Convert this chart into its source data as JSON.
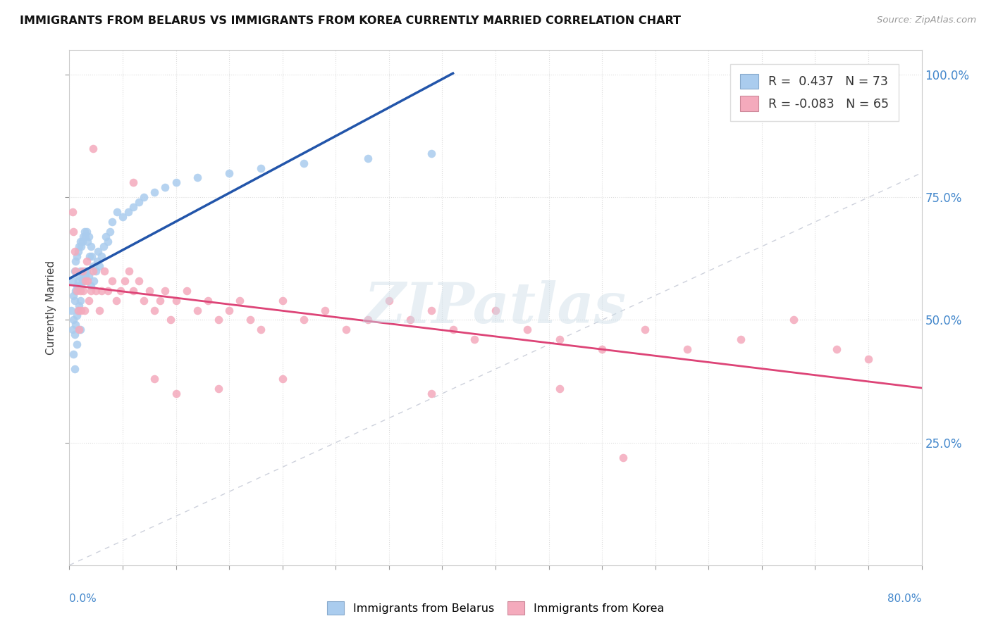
{
  "title": "IMMIGRANTS FROM BELARUS VS IMMIGRANTS FROM KOREA CURRENTLY MARRIED CORRELATION CHART",
  "source": "Source: ZipAtlas.com",
  "ylabel": "Currently Married",
  "xmin": 0.0,
  "xmax": 0.8,
  "ymin": 0.0,
  "ymax": 1.05,
  "yticks": [
    0.25,
    0.5,
    0.75,
    1.0
  ],
  "ytick_labels": [
    "25.0%",
    "50.0%",
    "75.0%",
    "100.0%"
  ],
  "legend_r_belarus": "0.437",
  "legend_n_belarus": "73",
  "legend_r_korea": "-0.083",
  "legend_n_korea": "65",
  "color_belarus": "#aaccee",
  "color_korea": "#f4aabc",
  "color_trendline_belarus": "#2255aa",
  "color_trendline_korea": "#dd4477",
  "color_diagonal": "#c8ccd8",
  "watermark": "ZIPatlas",
  "belarus_x": [
    0.002,
    0.003,
    0.003,
    0.004,
    0.004,
    0.004,
    0.005,
    0.005,
    0.005,
    0.005,
    0.006,
    0.006,
    0.006,
    0.007,
    0.007,
    0.007,
    0.007,
    0.008,
    0.008,
    0.008,
    0.009,
    0.009,
    0.009,
    0.01,
    0.01,
    0.01,
    0.01,
    0.011,
    0.011,
    0.012,
    0.012,
    0.013,
    0.013,
    0.014,
    0.014,
    0.015,
    0.015,
    0.016,
    0.016,
    0.017,
    0.018,
    0.018,
    0.019,
    0.02,
    0.02,
    0.021,
    0.022,
    0.023,
    0.025,
    0.026,
    0.027,
    0.028,
    0.03,
    0.032,
    0.034,
    0.036,
    0.038,
    0.04,
    0.045,
    0.05,
    0.055,
    0.06,
    0.065,
    0.07,
    0.08,
    0.09,
    0.1,
    0.12,
    0.15,
    0.18,
    0.22,
    0.28,
    0.34
  ],
  "belarus_y": [
    0.52,
    0.58,
    0.48,
    0.55,
    0.5,
    0.43,
    0.6,
    0.54,
    0.47,
    0.4,
    0.62,
    0.56,
    0.49,
    0.63,
    0.57,
    0.51,
    0.45,
    0.64,
    0.58,
    0.52,
    0.65,
    0.59,
    0.53,
    0.66,
    0.6,
    0.54,
    0.48,
    0.65,
    0.57,
    0.66,
    0.58,
    0.67,
    0.59,
    0.68,
    0.6,
    0.67,
    0.59,
    0.68,
    0.6,
    0.66,
    0.67,
    0.59,
    0.63,
    0.65,
    0.57,
    0.63,
    0.61,
    0.58,
    0.6,
    0.62,
    0.64,
    0.61,
    0.63,
    0.65,
    0.67,
    0.66,
    0.68,
    0.7,
    0.72,
    0.71,
    0.72,
    0.73,
    0.74,
    0.75,
    0.76,
    0.77,
    0.78,
    0.79,
    0.8,
    0.81,
    0.82,
    0.83,
    0.84
  ],
  "korea_x": [
    0.003,
    0.004,
    0.005,
    0.006,
    0.007,
    0.008,
    0.009,
    0.01,
    0.011,
    0.012,
    0.013,
    0.014,
    0.015,
    0.016,
    0.017,
    0.018,
    0.02,
    0.022,
    0.025,
    0.028,
    0.03,
    0.033,
    0.036,
    0.04,
    0.044,
    0.048,
    0.052,
    0.056,
    0.06,
    0.065,
    0.07,
    0.075,
    0.08,
    0.085,
    0.09,
    0.095,
    0.1,
    0.11,
    0.12,
    0.13,
    0.14,
    0.15,
    0.16,
    0.17,
    0.18,
    0.2,
    0.22,
    0.24,
    0.26,
    0.28,
    0.3,
    0.32,
    0.34,
    0.36,
    0.38,
    0.4,
    0.43,
    0.46,
    0.5,
    0.54,
    0.58,
    0.63,
    0.68,
    0.72,
    0.75
  ],
  "korea_y": [
    0.72,
    0.68,
    0.64,
    0.6,
    0.56,
    0.52,
    0.48,
    0.56,
    0.52,
    0.6,
    0.56,
    0.52,
    0.58,
    0.62,
    0.58,
    0.54,
    0.56,
    0.6,
    0.56,
    0.52,
    0.56,
    0.6,
    0.56,
    0.58,
    0.54,
    0.56,
    0.58,
    0.6,
    0.56,
    0.58,
    0.54,
    0.56,
    0.52,
    0.54,
    0.56,
    0.5,
    0.54,
    0.56,
    0.52,
    0.54,
    0.5,
    0.52,
    0.54,
    0.5,
    0.48,
    0.54,
    0.5,
    0.52,
    0.48,
    0.5,
    0.54,
    0.5,
    0.52,
    0.48,
    0.46,
    0.52,
    0.48,
    0.46,
    0.44,
    0.48,
    0.44,
    0.46,
    0.5,
    0.44,
    0.42
  ],
  "korea_outliers_x": [
    0.022,
    0.06,
    0.08,
    0.1,
    0.14,
    0.2,
    0.34,
    0.46,
    0.52
  ],
  "korea_outliers_y": [
    0.85,
    0.78,
    0.38,
    0.35,
    0.36,
    0.38,
    0.35,
    0.36,
    0.22
  ]
}
